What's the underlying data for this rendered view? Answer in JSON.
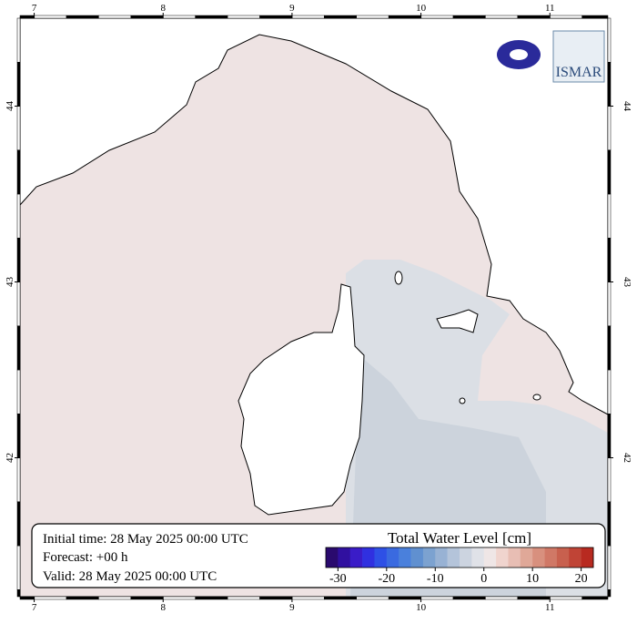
{
  "map": {
    "xlim": [
      6.89,
      11.45
    ],
    "ylim": [
      41.21,
      44.5
    ],
    "xticks": [
      7,
      8,
      9,
      10,
      11
    ],
    "yticks": [
      42,
      43,
      44
    ],
    "logo_text": "ISMAR",
    "info": [
      "Initial time: 28 May 2025 00:00 UTC",
      "Forecast: +00 h",
      "Valid: 28 May 2025 00:00 UTC"
    ],
    "colorbar": {
      "title": "Total Water Level [cm]",
      "lim": [
        -32.5,
        22.5
      ],
      "ticks": [
        -30,
        -20,
        -10,
        0,
        10,
        20
      ],
      "colors": [
        "#2a0a6e",
        "#3010a0",
        "#3a1cc8",
        "#3030e0",
        "#2e50e6",
        "#3a6ae0",
        "#4a80dc",
        "#6090d0",
        "#7ca2d0",
        "#98b2d4",
        "#b4c4da",
        "#ccd4e0",
        "#e0e2e8",
        "#efe6e6",
        "#f0d4ce",
        "#e8beb4",
        "#e0a898",
        "#d8907e",
        "#d07866",
        "#c8604e",
        "#c04436",
        "#b82a20"
      ]
    }
  }
}
